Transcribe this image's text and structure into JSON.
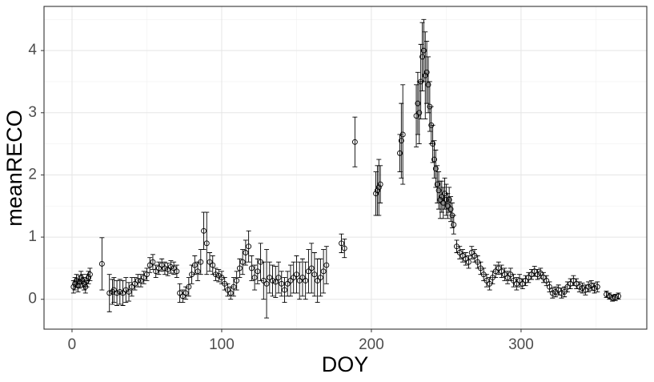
{
  "chart_data": {
    "type": "scatter",
    "x_label": "DOY",
    "y_label": "meanRECO",
    "xlim": [
      -18.7,
      384
    ],
    "ylim": [
      -0.48,
      4.71
    ],
    "xticks": [
      0,
      100,
      200,
      300
    ],
    "yticks": [
      0,
      1,
      2,
      3,
      4
    ],
    "x_minor_ticks": [
      50,
      150,
      250,
      350
    ],
    "y_minor_ticks": [
      0.5,
      1.5,
      2.5,
      3.5,
      4.5
    ],
    "grid": true,
    "color": "#000000",
    "x": [
      1,
      2,
      3,
      4,
      5,
      6,
      7,
      8,
      9,
      10,
      11,
      12,
      20,
      25,
      27,
      28,
      30,
      32,
      34,
      36,
      38,
      40,
      42,
      44,
      46,
      48,
      50,
      52,
      54,
      56,
      58,
      60,
      62,
      64,
      66,
      68,
      70,
      72,
      74,
      76,
      78,
      80,
      82,
      84,
      86,
      88,
      90,
      92,
      94,
      96,
      98,
      100,
      102,
      104,
      106,
      108,
      110,
      112,
      114,
      116,
      118,
      120,
      122,
      124,
      126,
      128,
      130,
      132,
      134,
      136,
      138,
      140,
      142,
      144,
      146,
      148,
      150,
      152,
      154,
      156,
      158,
      160,
      162,
      164,
      166,
      168,
      170,
      180,
      182,
      189,
      203,
      204,
      205,
      206,
      219,
      220,
      221,
      230,
      231,
      232,
      233,
      234,
      235,
      236,
      237,
      238,
      239,
      240,
      241,
      242,
      243,
      244,
      245,
      246,
      247,
      248,
      249,
      250,
      251,
      252,
      253,
      254,
      255,
      257,
      259,
      261,
      263,
      265,
      267,
      269,
      271,
      273,
      275,
      277,
      279,
      281,
      283,
      285,
      287,
      289,
      291,
      293,
      295,
      297,
      299,
      301,
      303,
      305,
      307,
      309,
      311,
      313,
      315,
      317,
      319,
      321,
      323,
      325,
      327,
      329,
      331,
      333,
      335,
      337,
      339,
      341,
      343,
      345,
      347,
      349,
      351,
      357,
      359,
      361,
      363,
      365
    ],
    "values": [
      0.2,
      0.25,
      0.3,
      0.22,
      0.28,
      0.35,
      0.3,
      0.25,
      0.2,
      0.3,
      0.35,
      0.4,
      0.57,
      0.1,
      0.12,
      0.15,
      0.1,
      0.12,
      0.1,
      0.15,
      0.12,
      0.2,
      0.25,
      0.3,
      0.3,
      0.35,
      0.4,
      0.55,
      0.6,
      0.45,
      0.5,
      0.55,
      0.5,
      0.48,
      0.52,
      0.5,
      0.45,
      0.1,
      0.05,
      0.1,
      0.2,
      0.4,
      0.55,
      0.45,
      0.6,
      1.1,
      0.9,
      0.6,
      0.55,
      0.4,
      0.38,
      0.35,
      0.25,
      0.15,
      0.1,
      0.2,
      0.3,
      0.5,
      0.6,
      0.75,
      0.85,
      0.5,
      0.35,
      0.45,
      0.6,
      0.3,
      0.25,
      0.35,
      0.3,
      0.28,
      0.35,
      0.25,
      0.15,
      0.25,
      0.3,
      0.35,
      0.4,
      0.3,
      0.35,
      0.3,
      0.45,
      0.5,
      0.4,
      0.3,
      0.35,
      0.45,
      0.55,
      0.9,
      0.82,
      2.53,
      1.7,
      1.75,
      1.8,
      1.85,
      2.35,
      2.55,
      2.65,
      2.95,
      3.15,
      3.0,
      3.5,
      3.9,
      4.0,
      3.6,
      3.65,
      3.45,
      3.1,
      2.8,
      2.5,
      2.25,
      2.1,
      1.85,
      1.75,
      1.6,
      1.65,
      1.55,
      1.7,
      1.6,
      1.5,
      1.6,
      1.45,
      1.35,
      1.2,
      0.85,
      0.75,
      0.7,
      0.65,
      0.6,
      0.75,
      0.7,
      0.6,
      0.5,
      0.4,
      0.3,
      0.25,
      0.35,
      0.45,
      0.5,
      0.45,
      0.4,
      0.35,
      0.4,
      0.3,
      0.25,
      0.3,
      0.25,
      0.3,
      0.35,
      0.4,
      0.45,
      0.4,
      0.42,
      0.35,
      0.3,
      0.2,
      0.1,
      0.12,
      0.15,
      0.1,
      0.12,
      0.2,
      0.25,
      0.3,
      0.25,
      0.2,
      0.18,
      0.15,
      0.2,
      0.22,
      0.18,
      0.2,
      0.08,
      0.05,
      0.02,
      0.03,
      0.05
    ],
    "errors": [
      0.1,
      0.1,
      0.1,
      0.1,
      0.1,
      0.1,
      0.1,
      0.1,
      0.1,
      0.1,
      0.1,
      0.1,
      0.42,
      0.3,
      0.2,
      0.2,
      0.2,
      0.2,
      0.2,
      0.2,
      0.15,
      0.15,
      0.1,
      0.1,
      0.1,
      0.1,
      0.1,
      0.12,
      0.12,
      0.1,
      0.1,
      0.1,
      0.1,
      0.1,
      0.1,
      0.1,
      0.1,
      0.15,
      0.1,
      0.1,
      0.15,
      0.15,
      0.15,
      0.15,
      0.2,
      0.3,
      0.5,
      0.15,
      0.15,
      0.1,
      0.1,
      0.1,
      0.1,
      0.1,
      0.1,
      0.15,
      0.15,
      0.15,
      0.2,
      0.2,
      0.25,
      0.2,
      0.2,
      0.2,
      0.3,
      0.3,
      0.55,
      0.25,
      0.25,
      0.25,
      0.25,
      0.2,
      0.2,
      0.2,
      0.25,
      0.25,
      0.3,
      0.3,
      0.3,
      0.3,
      0.35,
      0.4,
      0.35,
      0.35,
      0.3,
      0.35,
      0.3,
      0.15,
      0.15,
      0.4,
      0.35,
      0.4,
      0.45,
      0.3,
      0.3,
      0.6,
      0.8,
      0.5,
      0.5,
      0.5,
      0.6,
      0.55,
      0.5,
      0.7,
      0.5,
      0.45,
      0.4,
      0.3,
      0.3,
      0.3,
      0.3,
      0.3,
      0.3,
      0.3,
      0.25,
      0.25,
      0.25,
      0.25,
      0.2,
      0.2,
      0.2,
      0.2,
      0.15,
      0.1,
      0.1,
      0.1,
      0.1,
      0.1,
      0.1,
      0.1,
      0.1,
      0.1,
      0.1,
      0.1,
      0.1,
      0.1,
      0.1,
      0.1,
      0.1,
      0.1,
      0.1,
      0.1,
      0.1,
      0.1,
      0.1,
      0.08,
      0.08,
      0.08,
      0.08,
      0.08,
      0.08,
      0.08,
      0.08,
      0.08,
      0.08,
      0.08,
      0.08,
      0.08,
      0.08,
      0.08,
      0.08,
      0.08,
      0.08,
      0.08,
      0.08,
      0.08,
      0.08,
      0.08,
      0.08,
      0.08,
      0.08,
      0.05,
      0.05,
      0.05,
      0.05,
      0.05
    ]
  }
}
